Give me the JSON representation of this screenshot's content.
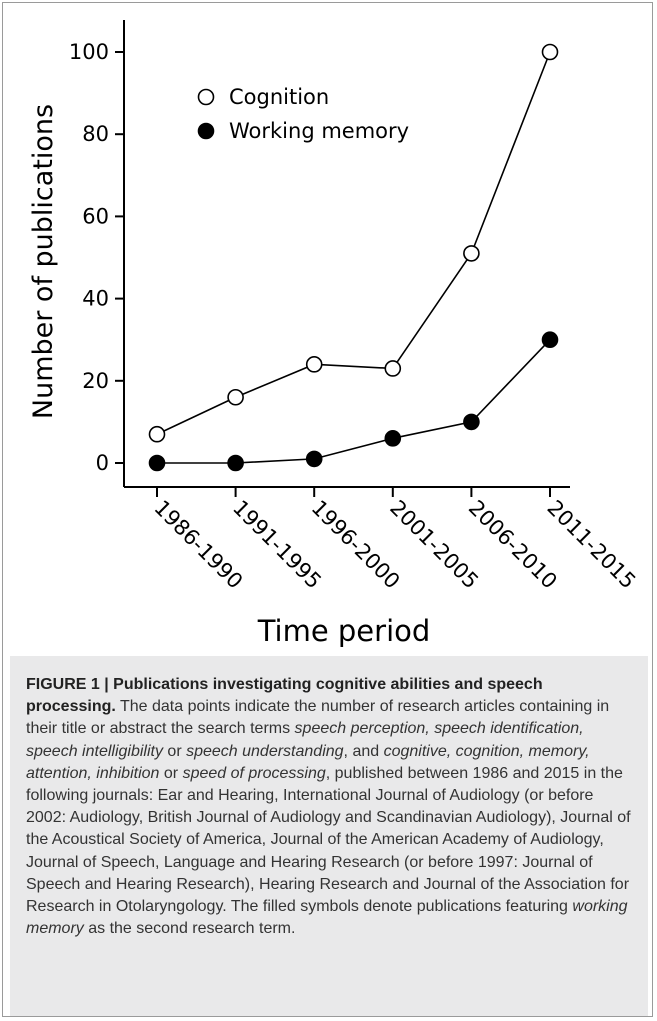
{
  "chart_data": {
    "type": "line",
    "categories": [
      "1986-1990",
      "1991-1995",
      "1996-2000",
      "2001-2005",
      "2006-2010",
      "2011-2015"
    ],
    "series": [
      {
        "name": "Cognition",
        "marker": "open-circle",
        "values": [
          7,
          16,
          24,
          23,
          51,
          100
        ]
      },
      {
        "name": "Working memory",
        "marker": "filled-circle",
        "values": [
          0,
          0,
          1,
          6,
          10,
          30
        ]
      }
    ],
    "title": "",
    "xlabel": "Time period",
    "ylabel": "Number of publications",
    "ylim": [
      0,
      100
    ],
    "yticks": [
      0,
      20,
      40,
      60,
      80,
      100
    ],
    "grid": false,
    "legend_position": "top-left"
  },
  "caption": {
    "label": "FIGURE 1 | Publications investigating cognitive abilities and speech processing.",
    "intro": " The data points indicate the number of research articles containing in their title or abstract the search terms ",
    "terms_speech": "speech perception, speech identification, speech intelligibility",
    "or_1": " or ",
    "term_understanding": "speech understanding",
    "and": ", and ",
    "terms_cognitive": "cognitive, cognition, memory, attention, inhibition",
    "or_2": " or ",
    "term_speed": "speed of processing",
    "body": ", published between 1986 and 2015 in the following journals: Ear and Hearing, International Journal of Audiology (or before 2002: Audiology, British Journal of Audiology and Scandinavian Audiology), Journal of the Acoustical Society of America, Journal of the American Academy of Audiology, Journal of Speech, Language and Hearing Research (or before 1997: Journal of Speech and Hearing Research), Hearing Research and Journal of the Association for Research in Otolaryngology. The filled symbols denote publications featuring ",
    "term_wm": "working memory",
    "end": " as the second research term."
  }
}
